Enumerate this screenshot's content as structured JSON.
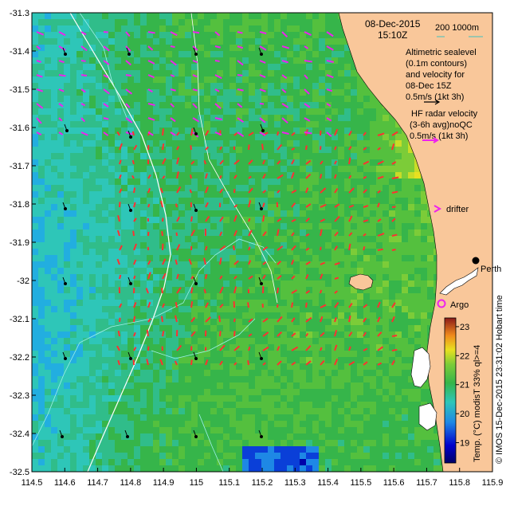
{
  "map": {
    "title_date": "08-Dec-2015",
    "title_time": "15:10Z",
    "isobath_legend": "200   1000m",
    "altimetry_lines": [
      "Altimetric sealevel",
      "(0.1m contours)",
      "and velocity for",
      "08-Dec 15Z",
      "0.5m/s (1kt 3h)"
    ],
    "radar_lines": [
      "HF radar velocity",
      "(3-6h avg)noQC",
      "0.5m/s (1kt 3h)"
    ],
    "drifter_label": "drifter",
    "argo_label": "Argo",
    "city_label": "Perth",
    "colorbar_label": "Temp. (°C) modisT 33% ql>=4",
    "credit": "© IMOS 15-Dec-2015 23:31:02 Hobart time",
    "colors": {
      "land": "#f9c79a",
      "hf_arrow": "#ff3030",
      "alt_arrow": "#000000",
      "magenta": "#ee22ee",
      "contour": "#a0f0e8"
    },
    "x_ticks": [
      "114.5",
      "114.6",
      "114.7",
      "114.8",
      "114.9",
      "115",
      "115.1",
      "115.2",
      "115.3",
      "115.4",
      "115.5",
      "115.6",
      "115.7",
      "115.8",
      "115.9"
    ],
    "y_ticks": [
      "-31.3",
      "-31.4",
      "-31.5",
      "-31.6",
      "-31.7",
      "-31.8",
      "-31.9",
      "-32",
      "-32.1",
      "-32.2",
      "-32.3",
      "-32.4",
      "-32.5"
    ],
    "colorbar_ticks": [
      "19",
      "20",
      "21",
      "22",
      "23"
    ],
    "lon_range": [
      114.5,
      115.9
    ],
    "lat_range": [
      -32.5,
      -31.3
    ],
    "temp_range": [
      18.3,
      23.3
    ]
  }
}
